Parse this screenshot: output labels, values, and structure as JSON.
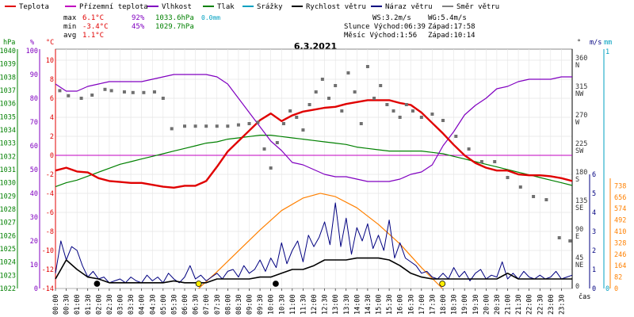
{
  "chart_data": {
    "type": "line",
    "title": "6.3.2021",
    "legend": [
      {
        "label": "Teplota",
        "color": "#e00000"
      },
      {
        "label": "Přízemní teplota",
        "color": "#c000c0"
      },
      {
        "label": "Vlhkost",
        "color": "#8000c0"
      },
      {
        "label": "Tlak",
        "color": "#008000"
      },
      {
        "label": "Srážky",
        "color": "#00a0c0"
      },
      {
        "label": "Rychlost větru",
        "color": "#000000"
      },
      {
        "label": "Náraz větru",
        "color": "#000080"
      },
      {
        "label": "Směr větru",
        "color": "#808080"
      }
    ],
    "stats": {
      "max_label": "max",
      "min_label": "min",
      "avg_label": "avg",
      "max_temp": "6.1°C",
      "max_hum": "92%",
      "max_press": "1033.6hPa",
      "max_rain": "0.0mm",
      "min_temp": "-3.4°C",
      "min_hum": "45%",
      "min_press": "1029.7hPa",
      "avg_temp": "1.1°C",
      "ws": "WS:3.2m/s",
      "wg": "WG:5.4m/s",
      "sun": "Slunce Východ:06:39",
      "sun_set": "Západ:17:58",
      "moon": "Měsíc  Východ:1:56",
      "moon_set": "Západ:10:14"
    },
    "axis_units": {
      "hpa": "hPa",
      "pct": "%",
      "celsius": "°C",
      "deg": "°",
      "ms": "m/s",
      "mm": "mm"
    },
    "x_unit": "čas",
    "x_ticks": [
      "00:00",
      "00:30",
      "01:00",
      "01:30",
      "02:00",
      "02:30",
      "03:00",
      "03:30",
      "04:00",
      "04:30",
      "05:00",
      "05:30",
      "06:00",
      "06:30",
      "07:00",
      "07:30",
      "08:00",
      "08:30",
      "09:00",
      "09:30",
      "10:00",
      "10:30",
      "11:00",
      "11:30",
      "12:00",
      "12:30",
      "13:00",
      "13:30",
      "14:00",
      "14:30",
      "15:00",
      "15:30",
      "16:00",
      "16:30",
      "17:00",
      "17:30",
      "18:00",
      "18:30",
      "19:00",
      "19:30",
      "20:00",
      "20:30",
      "21:00",
      "21:30",
      "22:00",
      "22:30",
      "23:00",
      "23:30"
    ],
    "pressure_ticks": [
      "1040",
      "1039",
      "1038",
      "1037",
      "1036",
      "1035",
      "1034",
      "1033",
      "1032",
      "1031",
      "1030",
      "1029",
      "1028",
      "1027",
      "1026",
      "1025",
      "1024",
      "1023",
      "1022"
    ],
    "humidity_ticks": [
      "100",
      "90",
      "80",
      "70",
      "60",
      "50",
      "40",
      "30",
      "20",
      "10",
      "0"
    ],
    "temp_ticks": [
      "10",
      "8",
      "6",
      "4",
      "2",
      "0",
      "-2",
      "-4",
      "-6",
      "-8",
      "-10",
      "-12",
      "-14"
    ],
    "dir_ticks": [
      {
        "deg": "360",
        "label": "N"
      },
      {
        "deg": "315",
        "label": "NW"
      },
      {
        "deg": "270",
        "label": "W"
      },
      {
        "deg": "225",
        "label": "SW"
      },
      {
        "deg": "180",
        "label": "S"
      },
      {
        "deg": "135",
        "label": "SE"
      },
      {
        "deg": "90",
        "label": "E"
      },
      {
        "deg": "45",
        "label": "NE"
      },
      {
        "deg": "0",
        "label": ""
      }
    ],
    "wind_ticks": [
      "6",
      "5",
      "4",
      "3",
      "2",
      "1",
      "0"
    ],
    "rain_ticks": [
      "1",
      "0"
    ],
    "solar_ticks": [
      "738",
      "656",
      "574",
      "492",
      "410",
      "328",
      "246",
      "164",
      "82",
      "0"
    ],
    "series": {
      "temperature": {
        "x_hours": [
          0,
          0.5,
          1,
          1.5,
          2,
          2.5,
          3,
          3.5,
          4,
          4.5,
          5,
          5.5,
          6,
          6.5,
          7,
          7.5,
          8,
          8.5,
          9,
          9.5,
          10,
          10.5,
          11,
          11.5,
          12,
          12.5,
          13,
          13.5,
          14,
          14.5,
          15,
          15.5,
          16,
          16.5,
          17,
          17.5,
          18,
          18.5,
          19,
          19.5,
          20,
          20.5,
          21,
          21.5,
          22,
          22.5,
          23,
          23.5,
          24
        ],
        "values": [
          -1.6,
          -1.3,
          -1.7,
          -1.8,
          -2.4,
          -2.7,
          -2.8,
          -2.9,
          -2.9,
          -3.1,
          -3.3,
          -3.4,
          -3.2,
          -3.2,
          -2.7,
          -1.2,
          0.4,
          1.5,
          2.6,
          3.7,
          4.4,
          3.6,
          4.2,
          4.6,
          4.8,
          5.0,
          5.1,
          5.4,
          5.6,
          5.8,
          5.8,
          5.8,
          5.5,
          5.3,
          4.5,
          3.4,
          2.3,
          1.1,
          0.0,
          -0.8,
          -1.3,
          -1.6,
          -1.6,
          -2.0,
          -2.1,
          -2.1,
          -2.2,
          -2.4,
          -2.7
        ]
      },
      "ground_temp": {
        "x_hours": [
          0,
          24
        ],
        "values": [
          0,
          0
        ]
      },
      "humidity": {
        "x_hours": [
          0,
          0.5,
          1,
          1.5,
          2,
          2.5,
          3,
          3.5,
          4,
          4.5,
          5,
          5.5,
          6,
          6.5,
          7,
          7.5,
          8,
          8.5,
          9,
          9.5,
          10,
          10.5,
          11,
          11.5,
          12,
          12.5,
          13,
          13.5,
          14,
          14.5,
          15,
          15.5,
          16,
          16.5,
          17,
          17.5,
          18,
          18.5,
          19,
          19.5,
          20,
          20.5,
          21,
          21.5,
          22,
          22.5,
          23,
          23.5,
          24
        ],
        "values": [
          86,
          83,
          83,
          85,
          86,
          87,
          87,
          87,
          87,
          88,
          89,
          90,
          90,
          90,
          90,
          89,
          86,
          80,
          74,
          68,
          62,
          58,
          53,
          52,
          50,
          48,
          47,
          47,
          46,
          45,
          45,
          45,
          46,
          48,
          49,
          52,
          60,
          66,
          73,
          77,
          80,
          84,
          85,
          87,
          88,
          88,
          88,
          89,
          89
        ]
      },
      "pressure": {
        "x_hours": [
          0,
          0.5,
          1,
          1.5,
          2,
          2.5,
          3,
          3.5,
          4,
          4.5,
          5,
          5.5,
          6,
          6.5,
          7,
          7.5,
          8,
          8.5,
          9,
          9.5,
          10,
          10.5,
          11,
          11.5,
          12,
          12.5,
          13,
          13.5,
          14,
          14.5,
          15,
          15.5,
          16,
          16.5,
          17,
          17.5,
          18,
          18.5,
          19,
          19.5,
          20,
          20.5,
          21,
          21.5,
          22,
          22.5,
          23,
          23.5,
          24
        ],
        "values": [
          1029.7,
          1030.0,
          1030.2,
          1030.5,
          1030.8,
          1031.1,
          1031.4,
          1031.6,
          1031.8,
          1032.0,
          1032.2,
          1032.4,
          1032.6,
          1032.8,
          1033.0,
          1033.1,
          1033.3,
          1033.4,
          1033.5,
          1033.6,
          1033.6,
          1033.5,
          1033.4,
          1033.3,
          1033.2,
          1033.1,
          1033.0,
          1032.9,
          1032.7,
          1032.6,
          1032.5,
          1032.4,
          1032.4,
          1032.4,
          1032.4,
          1032.3,
          1032.2,
          1032.0,
          1031.8,
          1031.6,
          1031.4,
          1031.2,
          1031.0,
          1030.8,
          1030.6,
          1030.4,
          1030.2,
          1030.0,
          1029.8
        ]
      },
      "solar": {
        "x_hours": [
          6.65,
          7.5,
          8.5,
          9.5,
          10.5,
          11.5,
          12.3,
          13.0,
          14.0,
          15.0,
          16.0,
          17.0,
          17.97
        ],
        "values": [
          0,
          120,
          270,
          420,
          560,
          650,
          684,
          660,
          580,
          460,
          320,
          150,
          0
        ]
      },
      "wind_speed": {
        "x_hours": [
          0,
          0.5,
          1,
          1.5,
          2,
          2.5,
          3,
          3.5,
          4,
          4.5,
          5,
          5.5,
          6,
          6.5,
          7,
          7.5,
          8,
          8.5,
          9,
          9.5,
          10,
          10.5,
          11,
          11.5,
          12,
          12.5,
          13,
          13.5,
          14,
          14.5,
          15,
          15.5,
          16,
          16.5,
          17,
          17.5,
          18,
          18.5,
          19,
          19.5,
          20,
          20.5,
          21,
          21.5,
          22,
          22.5,
          23,
          23.5,
          24
        ],
        "values": [
          0.5,
          1.5,
          1.0,
          0.6,
          0.5,
          0.3,
          0.3,
          0.3,
          0.3,
          0.3,
          0.3,
          0.4,
          0.3,
          0.3,
          0.3,
          0.5,
          0.5,
          0.5,
          0.5,
          0.6,
          0.6,
          0.8,
          1.0,
          1.0,
          1.2,
          1.5,
          1.5,
          1.5,
          1.6,
          1.6,
          1.6,
          1.5,
          1.2,
          0.8,
          0.6,
          0.5,
          0.5,
          0.5,
          0.5,
          0.5,
          0.5,
          0.5,
          0.8,
          0.5,
          0.5,
          0.5,
          0.5,
          0.5,
          0.5
        ]
      },
      "wind_gust": {
        "x_hours": [
          0,
          0.25,
          0.5,
          0.75,
          1,
          1.25,
          1.5,
          1.75,
          2,
          2.25,
          2.5,
          2.75,
          3,
          3.25,
          3.5,
          3.75,
          4,
          4.25,
          4.5,
          4.75,
          5,
          5.25,
          5.5,
          5.75,
          6,
          6.25,
          6.5,
          6.75,
          7,
          7.25,
          7.5,
          7.75,
          8,
          8.25,
          8.5,
          8.75,
          9,
          9.25,
          9.5,
          9.75,
          10,
          10.25,
          10.5,
          10.75,
          11,
          11.25,
          11.5,
          11.75,
          12,
          12.25,
          12.5,
          12.75,
          13,
          13.25,
          13.5,
          13.75,
          14,
          14.25,
          14.5,
          14.75,
          15,
          15.25,
          15.5,
          15.75,
          16,
          16.25,
          16.5,
          16.75,
          17,
          17.25,
          17.5,
          17.75,
          18,
          18.25,
          18.5,
          18.75,
          19,
          19.25,
          19.5,
          19.75,
          20,
          20.25,
          20.5,
          20.75,
          21,
          21.25,
          21.5,
          21.75,
          22,
          22.25,
          22.5,
          22.75,
          23,
          23.25,
          23.5,
          23.75,
          24
        ],
        "values": [
          0.8,
          2.5,
          1.5,
          2.2,
          2.0,
          1.2,
          0.6,
          0.9,
          0.5,
          0.6,
          0.3,
          0.4,
          0.5,
          0.3,
          0.6,
          0.4,
          0.3,
          0.7,
          0.4,
          0.6,
          0.3,
          0.8,
          0.5,
          0.3,
          0.6,
          1.2,
          0.5,
          0.7,
          0.4,
          0.6,
          0.8,
          0.5,
          0.9,
          1.0,
          0.6,
          1.2,
          0.8,
          1.0,
          1.5,
          0.9,
          1.6,
          1.1,
          2.4,
          1.3,
          2.0,
          2.5,
          1.4,
          2.8,
          2.2,
          2.7,
          3.5,
          2.3,
          4.5,
          2.2,
          3.7,
          1.8,
          3.2,
          2.5,
          3.4,
          2.1,
          2.8,
          2.0,
          3.6,
          1.6,
          2.4,
          1.6,
          1.4,
          1.2,
          0.8,
          0.9,
          0.6,
          0.5,
          0.8,
          0.5,
          1.1,
          0.6,
          0.9,
          0.4,
          0.8,
          1.0,
          0.5,
          0.7,
          0.6,
          1.4,
          0.5,
          0.8,
          0.5,
          0.9,
          0.6,
          0.5,
          0.7,
          0.5,
          0.6,
          0.9,
          0.5,
          0.6,
          0.7
        ]
      },
      "wind_dir_samples": {
        "x_hours": [
          0.2,
          0.6,
          1.2,
          1.7,
          2.3,
          2.6,
          3.2,
          3.6,
          4.1,
          4.6,
          5.0,
          5.4,
          6.0,
          6.5,
          7.0,
          7.5,
          8.0,
          8.5,
          9.0,
          9.4,
          9.7,
          10.0,
          10.3,
          10.6,
          10.9,
          11.2,
          11.5,
          11.8,
          12.1,
          12.4,
          12.7,
          13.0,
          13.3,
          13.6,
          13.9,
          14.2,
          14.5,
          14.8,
          15.1,
          15.4,
          15.7,
          16.0,
          16.3,
          16.6,
          17.0,
          17.5,
          18.0,
          18.6,
          19.2,
          19.8,
          20.4,
          21.0,
          21.6,
          22.2,
          22.8,
          23.4,
          23.9
        ],
        "values": [
          312,
          304,
          300,
          305,
          314,
          312,
          310,
          309,
          309,
          310,
          300,
          252,
          256,
          256,
          256,
          256,
          256,
          258,
          260,
          262,
          220,
          190,
          230,
          260,
          280,
          270,
          250,
          290,
          310,
          330,
          300,
          320,
          280,
          340,
          310,
          260,
          350,
          300,
          320,
          290,
          280,
          270,
          290,
          280,
          270,
          275,
          265,
          240,
          220,
          200,
          200,
          175,
          160,
          145,
          140,
          80,
          75
        ]
      },
      "sun_markers_hours": [
        6.65,
        17.97
      ],
      "moon_markers_hours": [
        1.93,
        10.23
      ]
    }
  }
}
